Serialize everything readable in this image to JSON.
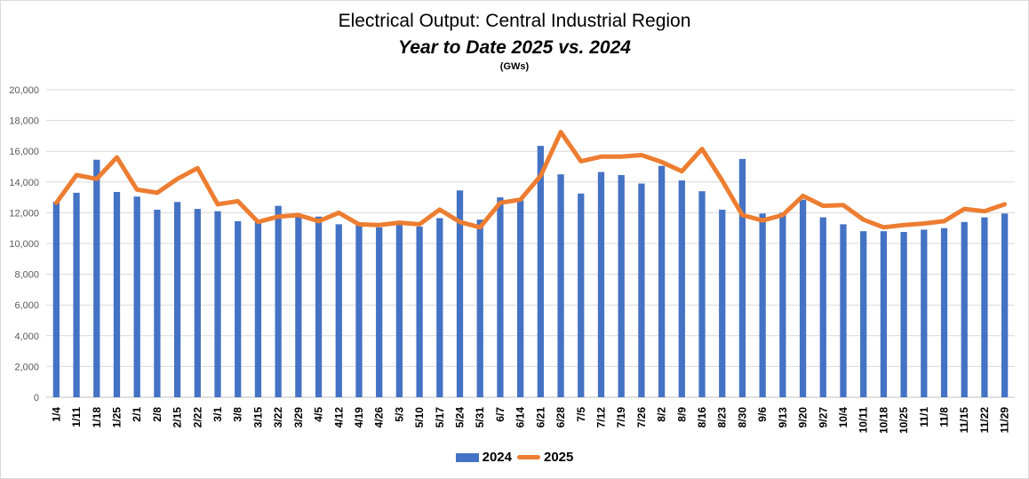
{
  "chart_data": {
    "type": "bar",
    "title": "Electrical Output:  Central Industrial Region",
    "subtitle": "Year to Date 2025 vs. 2024",
    "unit": "(GWs)",
    "ylim": [
      0,
      20000
    ],
    "yticks": [
      "0",
      "2,000",
      "4,000",
      "6,000",
      "8,000",
      "10,000",
      "12,000",
      "14,000",
      "16,000",
      "18,000",
      "20,000"
    ],
    "grid": true,
    "legend_position": "bottom",
    "categories": [
      "1/4",
      "1/11",
      "1/18",
      "1/25",
      "2/1",
      "2/8",
      "2/15",
      "2/22",
      "3/1",
      "3/8",
      "3/15",
      "3/22",
      "3/29",
      "4/5",
      "4/12",
      "4/19",
      "4/26",
      "5/3",
      "5/10",
      "5/17",
      "5/24",
      "5/31",
      "6/7",
      "6/14",
      "6/21",
      "6/28",
      "7/5",
      "7/12",
      "7/19",
      "7/26",
      "8/2",
      "8/9",
      "8/16",
      "8/23",
      "8/30",
      "9/6",
      "9/13",
      "9/20",
      "9/27",
      "10/4",
      "10/11",
      "10/18",
      "10/25",
      "11/1",
      "11/8",
      "11/15",
      "11/22",
      "11/29"
    ],
    "series": [
      {
        "name": "2024",
        "kind": "bar",
        "color": "#4472c4",
        "values": [
          12700,
          13300,
          15450,
          13350,
          13050,
          12200,
          12700,
          12250,
          12100,
          11450,
          11400,
          12450,
          11750,
          11750,
          11250,
          11200,
          11050,
          11300,
          11100,
          11650,
          13450,
          11550,
          13000,
          12800,
          16350,
          14500,
          13250,
          14650,
          14450,
          13900,
          15050,
          14100,
          13400,
          12200,
          15500,
          11950,
          12000,
          12850,
          11700,
          11250,
          10800,
          10800,
          10750,
          10900,
          11000,
          11400,
          11700,
          11950
        ]
      },
      {
        "name": "2025",
        "kind": "line",
        "color": "#ed7d31",
        "values": [
          12650,
          14450,
          14200,
          15600,
          13500,
          13300,
          14200,
          14900,
          12550,
          12750,
          11400,
          11750,
          11850,
          11450,
          12000,
          11250,
          11200,
          11350,
          11250,
          12200,
          11400,
          11050,
          12650,
          12850,
          14400,
          17250,
          15350,
          15650,
          15650,
          15750,
          15300,
          14700,
          16150,
          14100,
          11850,
          11500,
          11850,
          13100,
          12450,
          12500,
          11550,
          11050,
          11200,
          11300,
          11450,
          12250,
          12100,
          12550
        ]
      }
    ]
  }
}
